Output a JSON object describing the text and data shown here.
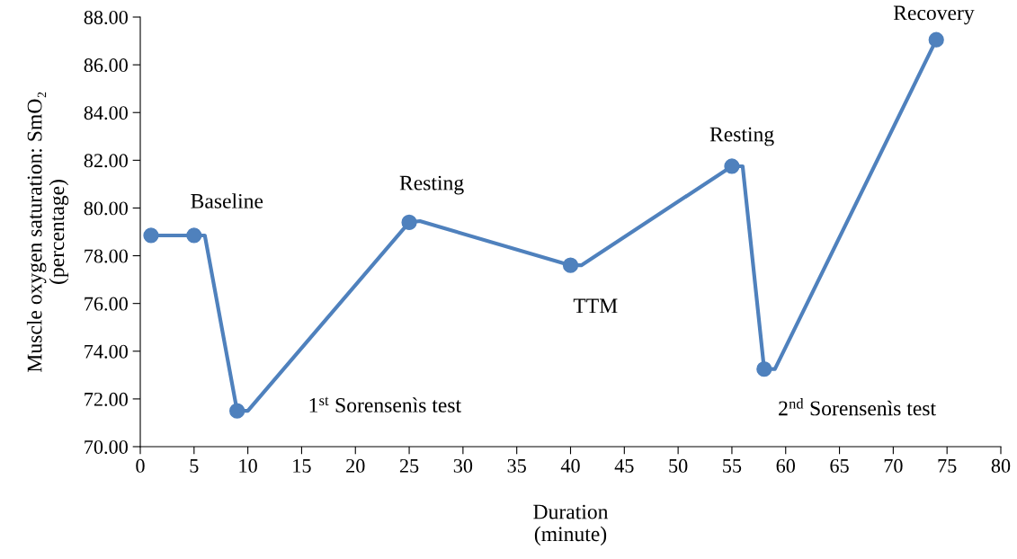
{
  "chart_data": {
    "type": "line",
    "xlabel": "Duration\n(minute)",
    "ylabel": "Muscle oxygen saturation: SmO₂\n(percentage)",
    "series": [
      {
        "color": "#4f81bd",
        "marker": "none",
        "x": [
          1,
          5,
          6,
          9,
          10,
          25,
          26,
          40,
          41,
          55,
          56,
          58,
          59,
          74
        ],
        "values": [
          78.85,
          78.85,
          78.85,
          71.5,
          71.5,
          79.4,
          79.45,
          77.6,
          77.6,
          81.75,
          81.75,
          73.25,
          73.25,
          87.05
        ]
      },
      {
        "type": "scatter",
        "color": "#4f81bd",
        "marker": "circle",
        "x": [
          1,
          5,
          9,
          25,
          40,
          55,
          58,
          74
        ],
        "values": [
          78.85,
          78.85,
          71.5,
          79.4,
          77.6,
          81.75,
          73.25,
          87.05
        ]
      }
    ],
    "xlim": [
      0,
      80
    ],
    "xticks": [
      0,
      5,
      10,
      15,
      20,
      25,
      30,
      35,
      40,
      45,
      50,
      55,
      60,
      65,
      70,
      75,
      80
    ],
    "ylim": [
      70,
      88
    ],
    "yticks": [
      {
        "value": 70,
        "label": "70.00"
      },
      {
        "value": 72,
        "label": "72.00"
      },
      {
        "value": 74,
        "label": "74.00"
      },
      {
        "value": 76,
        "label": "76.00"
      },
      {
        "value": 78,
        "label": "78.00"
      },
      {
        "value": 80,
        "label": "80.00"
      },
      {
        "value": 82,
        "label": "82.00"
      },
      {
        "value": 84,
        "label": "84.00"
      },
      {
        "value": 86,
        "label": "86.00"
      },
      {
        "value": 88,
        "label": "88.00"
      }
    ],
    "grid": false,
    "legend": false,
    "annotations": [
      {
        "text": "Baseline",
        "x": 5,
        "y": 78.85
      },
      "1$^{st}$ Sorensenìs test",
      {
        "text": "Resting",
        "x": 25,
        "y": 79.4
      },
      {
        "text": "TTM",
        "x": 40,
        "y": 77.6
      },
      {
        "text": "Resting",
        "x": 55,
        "y": 81.75
      },
      {
        "text": "2$^{nd}$ Sorensenìs test",
        "x": 58,
        "y": 73.25
      },
      {
        "text": "Recovery",
        "x": 74,
        "y": 87.05
      }
    ]
  }
}
